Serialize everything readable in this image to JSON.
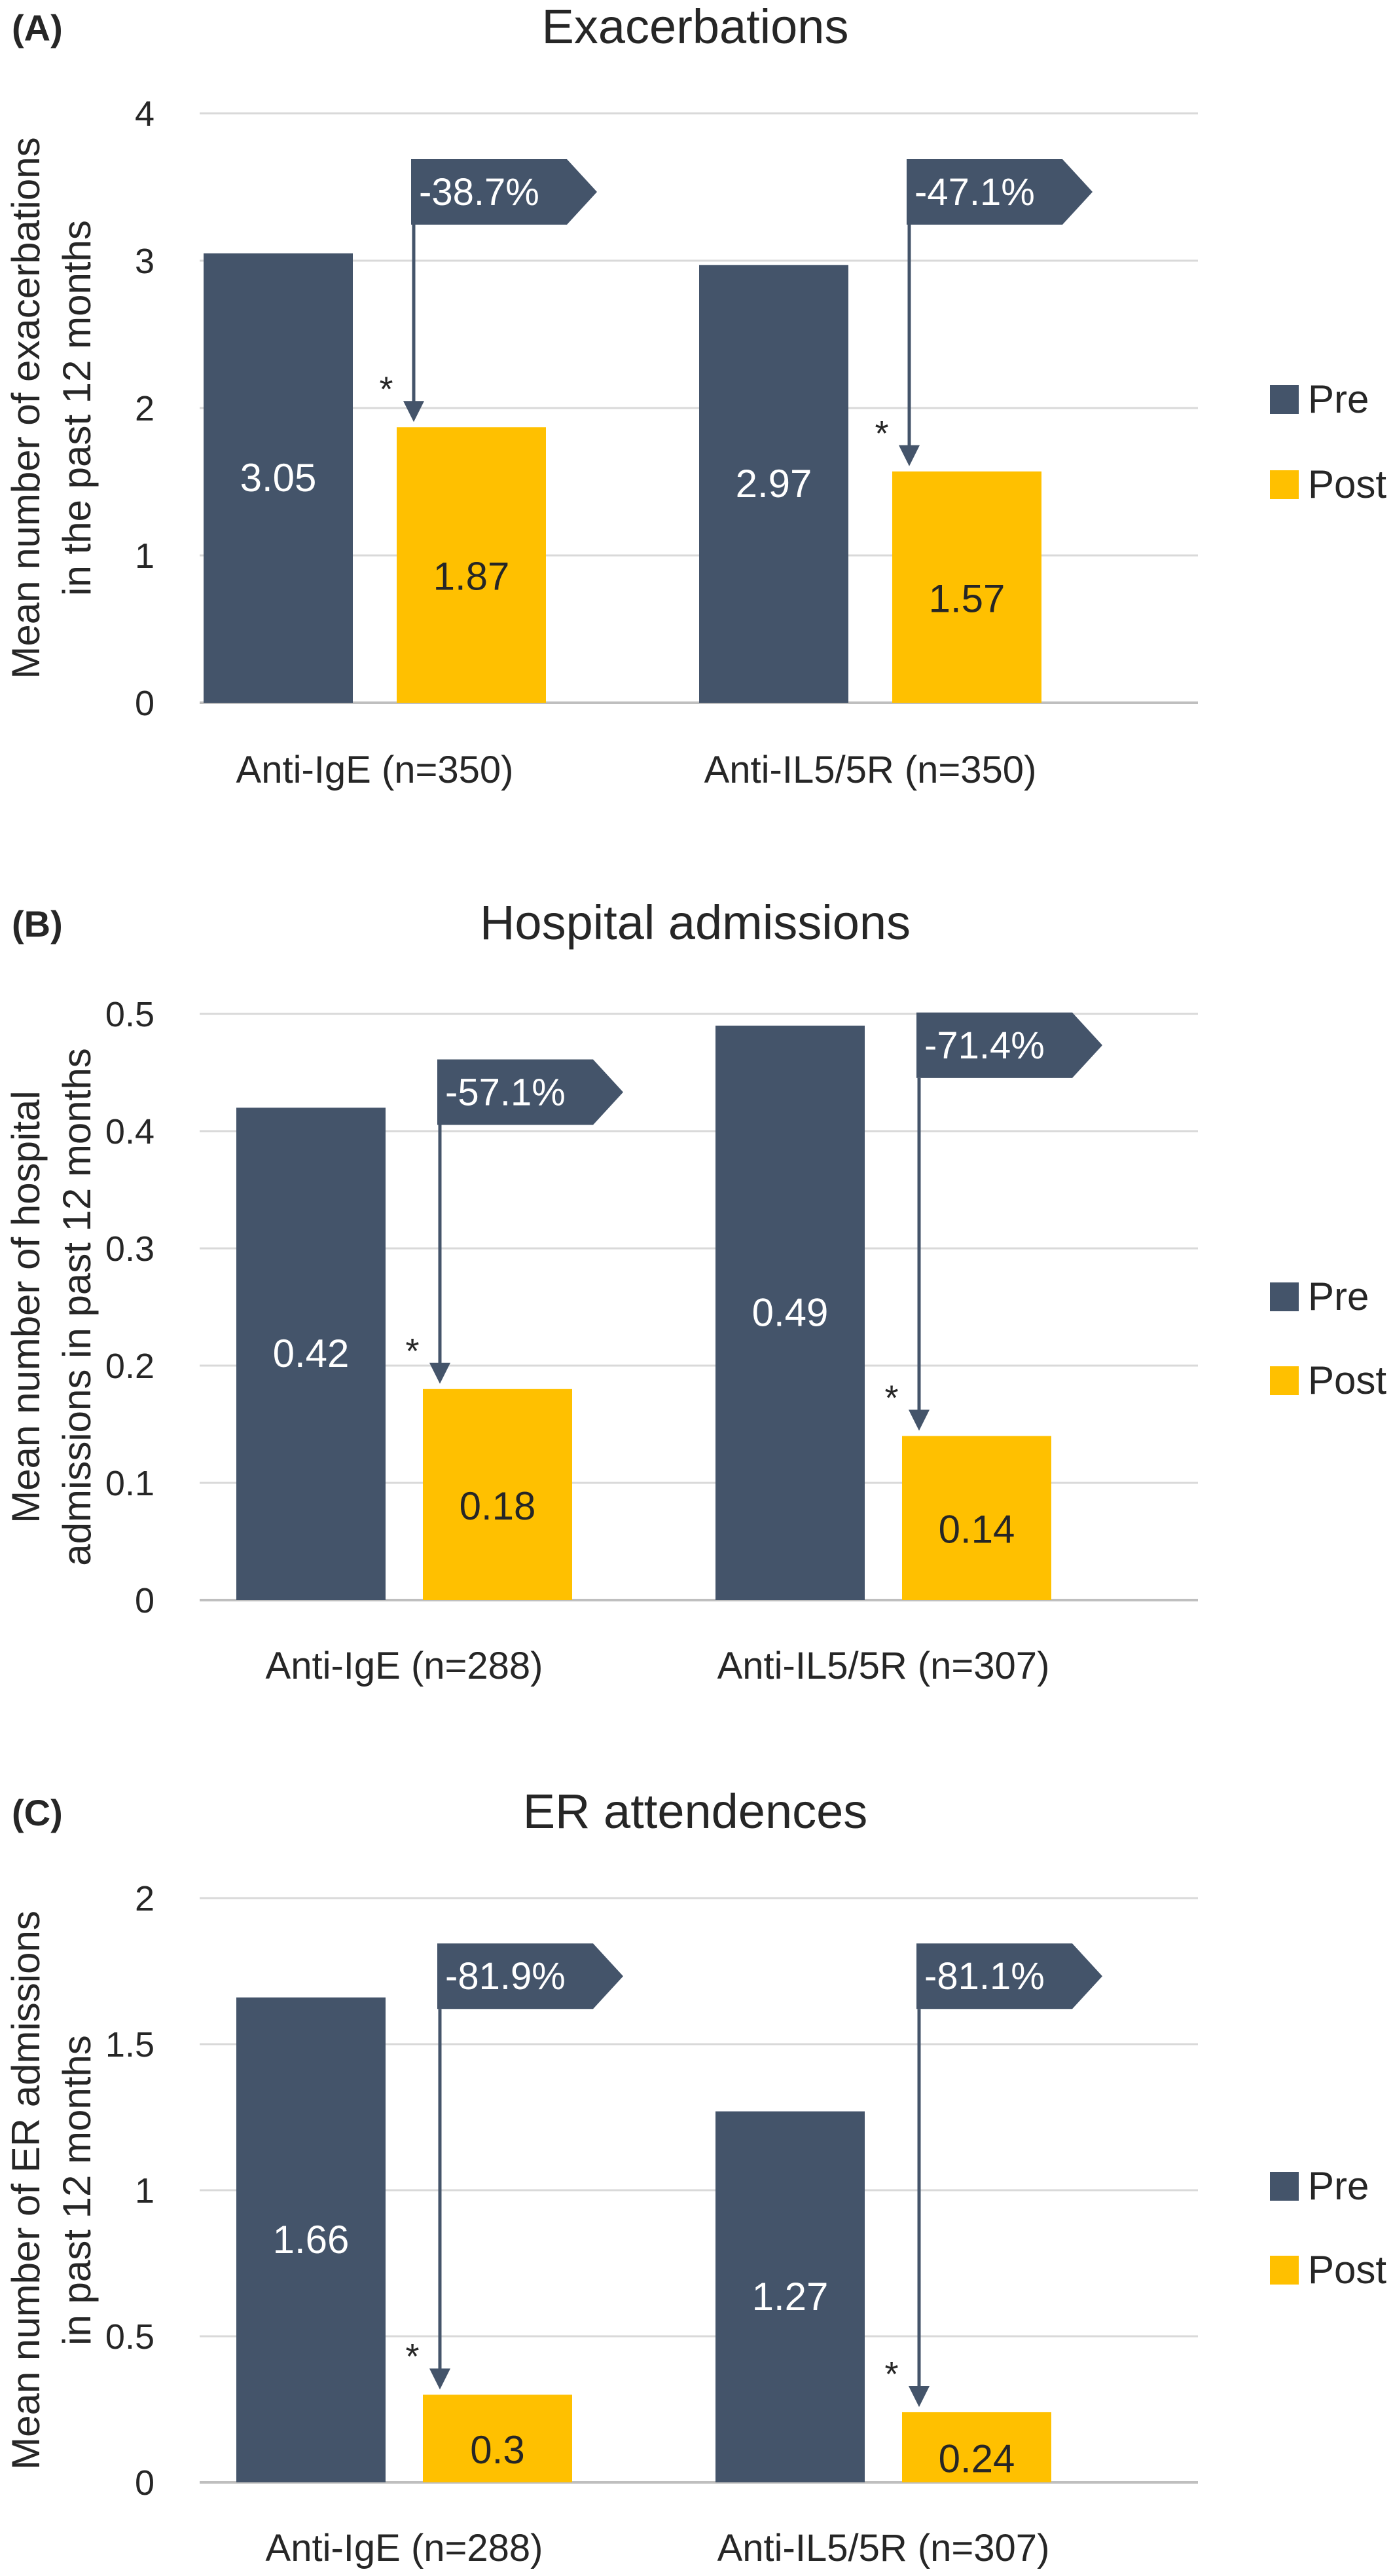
{
  "colors": {
    "pre": "#44546a",
    "post": "#ffc000",
    "grid": "#d9d9d9",
    "axis": "#bfbfbf",
    "text": "#262626",
    "label_on_pre": "#ffffff",
    "label_on_post": "#262626",
    "callout": "#44546a",
    "callout_text": "#ffffff"
  },
  "chart_data": [
    {
      "type": "bar",
      "panel_label": "(A)",
      "title": "Exacerbations",
      "ylabel_lines": [
        "Mean number of exacerbations",
        "in the  past 12 months"
      ],
      "ylim": [
        0,
        4
      ],
      "yticks": [
        0,
        1,
        2,
        3,
        4
      ],
      "ytick_labels": [
        "0",
        "1",
        "2",
        "3",
        "4"
      ],
      "categories": [
        "Anti-IgE (n=350)",
        "Anti-IL5/5R (n=350)"
      ],
      "series": [
        {
          "name": "Pre",
          "values": [
            3.05,
            2.97
          ],
          "labels": [
            "3.05",
            "2.97"
          ]
        },
        {
          "name": "Post",
          "values": [
            1.87,
            1.57
          ],
          "labels": [
            "1.87",
            "1.57"
          ]
        }
      ],
      "significance": [
        "*",
        "*"
      ],
      "changes": [
        "-38.7%",
        "-47.1%"
      ],
      "grid": true,
      "legend_position": "right"
    },
    {
      "type": "bar",
      "panel_label": "(B)",
      "title": "Hospital admissions",
      "ylabel_lines": [
        "Mean number of hospital",
        "admissions in past 12 months"
      ],
      "ylim": [
        0,
        0.5
      ],
      "yticks": [
        0,
        0.1,
        0.2,
        0.3,
        0.4,
        0.5
      ],
      "ytick_labels": [
        "0",
        "0.1",
        "0.2",
        "0.3",
        "0.4",
        "0.5"
      ],
      "categories": [
        "Anti-IgE (n=288)",
        "Anti-IL5/5R (n=307)"
      ],
      "series": [
        {
          "name": "Pre",
          "values": [
            0.42,
            0.49
          ],
          "labels": [
            "0.42",
            "0.49"
          ]
        },
        {
          "name": "Post",
          "values": [
            0.18,
            0.14
          ],
          "labels": [
            "0.18",
            "0.14"
          ]
        }
      ],
      "significance": [
        "*",
        "*"
      ],
      "changes": [
        "-57.1%",
        "-71.4%"
      ],
      "grid": true,
      "legend_position": "right"
    },
    {
      "type": "bar",
      "panel_label": "(C)",
      "title": "ER attendences",
      "ylabel_lines": [
        "Mean number of ER admissions",
        "in past 12 months"
      ],
      "ylim": [
        0,
        2
      ],
      "yticks": [
        0,
        0.5,
        1,
        1.5,
        2
      ],
      "ytick_labels": [
        "0",
        "0.5",
        "1",
        "1.5",
        "2"
      ],
      "categories": [
        "Anti-IgE (n=288)",
        "Anti-IL5/5R (n=307)"
      ],
      "series": [
        {
          "name": "Pre",
          "values": [
            1.66,
            1.27
          ],
          "labels": [
            "1.66",
            "1.27"
          ]
        },
        {
          "name": "Post",
          "values": [
            0.3,
            0.24
          ],
          "labels": [
            "0.3",
            "0.24"
          ]
        }
      ],
      "significance": [
        "*",
        "*"
      ],
      "changes": [
        "-81.9%",
        "-81.1%"
      ],
      "grid": true,
      "legend_position": "right"
    }
  ]
}
